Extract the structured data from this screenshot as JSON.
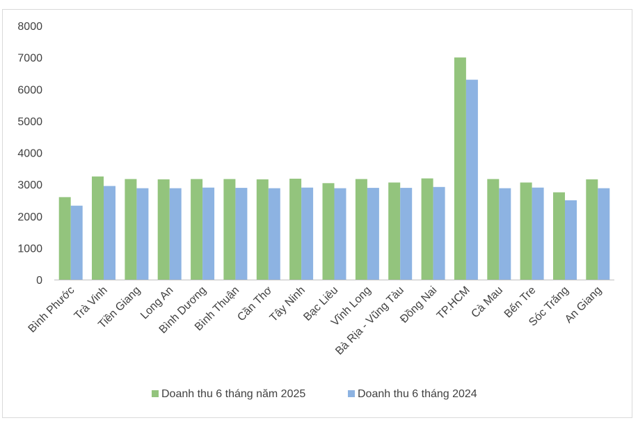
{
  "chart_data": {
    "type": "bar",
    "title": "",
    "xlabel": "",
    "ylabel": "",
    "ylim": [
      0,
      8000
    ],
    "yticks": [
      0,
      1000,
      2000,
      3000,
      4000,
      5000,
      6000,
      7000,
      8000
    ],
    "grid": false,
    "legend_position": "bottom",
    "categories": [
      "Bình Phước",
      "Trà Vinh",
      "Tiền Giang",
      "Long An",
      "Bình Dương",
      "Bình Thuận",
      "Cần Thơ",
      "Tây Ninh",
      "Bạc Liêu",
      "Vĩnh Long",
      "Bà Rịa - Vũng Tàu",
      "Đồng Nai",
      "TP.HCM",
      "Cà Mau",
      "Bến Tre",
      "Sóc Trăng",
      "An Giang"
    ],
    "series": [
      {
        "name": "Doanh thu 6 tháng năm 2025",
        "color": "#93c47d",
        "values": [
          2600,
          3250,
          3170,
          3160,
          3170,
          3170,
          3160,
          3180,
          3040,
          3170,
          3060,
          3190,
          7000,
          3170,
          3060,
          2750,
          3160
        ]
      },
      {
        "name": "Doanh thu 6 tháng 2024",
        "color": "#8db3e2",
        "values": [
          2330,
          2950,
          2880,
          2880,
          2900,
          2890,
          2880,
          2900,
          2880,
          2890,
          2890,
          2920,
          6300,
          2880,
          2900,
          2500,
          2880
        ]
      }
    ]
  }
}
